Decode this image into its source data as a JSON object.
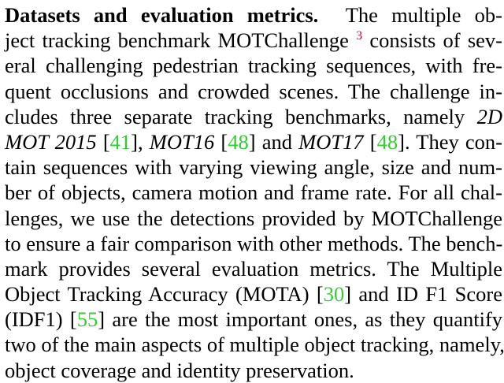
{
  "paragraph": {
    "heading": "Datasets and evaluation metrics.",
    "l1_a": "The multiple ob-",
    "l2_a": "ject tracking benchmark MOTChallenge",
    "l2_fn": "3",
    "l2_b": "consists of sev-",
    "l3": "eral challenging pedestrian tracking sequences, with fre-",
    "l4": "quent occlusions and crowded scenes. The challenge in-",
    "l5": "cludes three separate tracking benchmarks, namely",
    "l5_it": "2D",
    "l6_it1": "MOT 2015",
    "l6_c1": "41",
    "l6_it2": "MOT16",
    "l6_c2": "48",
    "l6_and": "and",
    "l6_it3": "MOT17",
    "l6_c3": "48",
    "l6_end": "They con-",
    "l7": "tain sequences with varying viewing angle, size and num-",
    "l8": "ber of objects, camera motion and frame rate. For all chal-",
    "l9": "lenges, we use the detections provided by MOTChallenge",
    "l10": "to ensure a fair comparison with other methods. The bench-",
    "l11": "mark provides several evaluation metrics. The Multiple",
    "l12_a": "Object Tracking Accuracy (MOTA)",
    "l12_c": "30",
    "l12_b": "and ID F1 Score",
    "l13_a": "(IDF1)",
    "l13_c": "55",
    "l13_b": "are the most important ones, as they quantify",
    "l14": "two of the main aspects of multiple object tracking, namely,",
    "l15": "object coverage and identity preservation."
  },
  "colors": {
    "citation": "#2fcf2f",
    "footnote": "#e8002a",
    "text": "#000000"
  }
}
